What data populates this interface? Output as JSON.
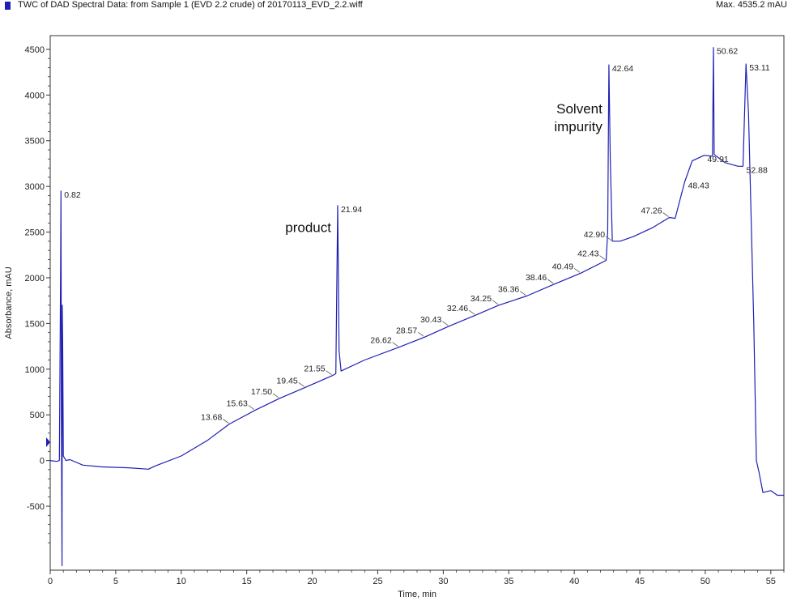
{
  "header": {
    "title": "TWC of DAD Spectral Data: from Sample 1 (EVD 2.2 crude) of 20170113_EVD_2.2.wiff",
    "max_label": "Max. 4535.2 mAU"
  },
  "chart_data": {
    "type": "line",
    "xlabel": "Time, min",
    "ylabel": "Absorbance, mAU",
    "xlim": [
      0,
      56
    ],
    "ylim": [
      -1200,
      4650
    ],
    "xticks": [
      0,
      5,
      10,
      15,
      20,
      25,
      30,
      35,
      40,
      45,
      50,
      55
    ],
    "yticks": [
      -500,
      0,
      500,
      1000,
      1500,
      2000,
      2500,
      3000,
      3500,
      4000,
      4500
    ],
    "grid": false,
    "colors": {
      "trace": "#1f1fb4",
      "axis": "#333333"
    },
    "series": [
      {
        "points": [
          [
            0,
            0
          ],
          [
            0.5,
            -10
          ],
          [
            0.7,
            0
          ],
          [
            0.8,
            2180
          ],
          [
            0.82,
            2950
          ],
          [
            0.85,
            500
          ],
          [
            0.9,
            -1150
          ],
          [
            0.92,
            1700
          ],
          [
            0.95,
            1300
          ],
          [
            1.0,
            50
          ],
          [
            1.2,
            0
          ],
          [
            1.5,
            10
          ],
          [
            2.5,
            -50
          ],
          [
            4,
            -70
          ],
          [
            6,
            -80
          ],
          [
            7.5,
            -95
          ],
          [
            8,
            -60
          ],
          [
            10,
            50
          ],
          [
            12,
            220
          ],
          [
            13.68,
            400
          ],
          [
            15.63,
            550
          ],
          [
            17.5,
            680
          ],
          [
            19.45,
            800
          ],
          [
            21.55,
            930
          ],
          [
            21.8,
            950
          ],
          [
            21.94,
            2790
          ],
          [
            22.05,
            1200
          ],
          [
            22.2,
            980
          ],
          [
            24,
            1100
          ],
          [
            26.62,
            1240
          ],
          [
            28.57,
            1350
          ],
          [
            30.43,
            1470
          ],
          [
            32.46,
            1590
          ],
          [
            34.25,
            1700
          ],
          [
            36.36,
            1800
          ],
          [
            38.46,
            1930
          ],
          [
            40.49,
            2050
          ],
          [
            42.43,
            2190
          ],
          [
            42.55,
            2500
          ],
          [
            42.64,
            4330
          ],
          [
            42.75,
            3300
          ],
          [
            42.9,
            2400
          ],
          [
            43.5,
            2400
          ],
          [
            44.5,
            2450
          ],
          [
            46,
            2550
          ],
          [
            47.26,
            2660
          ],
          [
            47.7,
            2650
          ],
          [
            48.43,
            3050
          ],
          [
            49,
            3280
          ],
          [
            49.91,
            3340
          ],
          [
            50.55,
            3330
          ],
          [
            50.62,
            4520
          ],
          [
            50.68,
            3350
          ],
          [
            51.5,
            3260
          ],
          [
            52.5,
            3220
          ],
          [
            52.88,
            3220
          ],
          [
            53.11,
            4340
          ],
          [
            53.3,
            3800
          ],
          [
            53.7,
            1500
          ],
          [
            53.9,
            0
          ],
          [
            54.1,
            -130
          ],
          [
            54.4,
            -350
          ],
          [
            55,
            -330
          ],
          [
            55.5,
            -380
          ],
          [
            56,
            -380
          ]
        ]
      }
    ],
    "peak_labels": [
      {
        "x": 0.82,
        "y": 2950,
        "text": "0.82"
      },
      {
        "x": 13.68,
        "y": 400,
        "text": "13.68"
      },
      {
        "x": 15.63,
        "y": 550,
        "text": "15.63"
      },
      {
        "x": 17.5,
        "y": 680,
        "text": "17.50"
      },
      {
        "x": 19.45,
        "y": 800,
        "text": "19.45"
      },
      {
        "x": 21.55,
        "y": 930,
        "text": "21.55"
      },
      {
        "x": 21.94,
        "y": 2790,
        "text": "21.94"
      },
      {
        "x": 26.62,
        "y": 1240,
        "text": "26.62"
      },
      {
        "x": 28.57,
        "y": 1350,
        "text": "28.57"
      },
      {
        "x": 30.43,
        "y": 1470,
        "text": "30.43"
      },
      {
        "x": 32.46,
        "y": 1590,
        "text": "32.46"
      },
      {
        "x": 34.25,
        "y": 1700,
        "text": "34.25"
      },
      {
        "x": 36.36,
        "y": 1800,
        "text": "36.36"
      },
      {
        "x": 38.46,
        "y": 1930,
        "text": "38.46"
      },
      {
        "x": 40.49,
        "y": 2050,
        "text": "40.49"
      },
      {
        "x": 42.43,
        "y": 2190,
        "text": "42.43"
      },
      {
        "x": 42.64,
        "y": 4330,
        "text": "42.64"
      },
      {
        "x": 42.9,
        "y": 2400,
        "text": "42.90"
      },
      {
        "x": 47.26,
        "y": 2660,
        "text": "47.26"
      },
      {
        "x": 48.43,
        "y": 3050,
        "text": "48.43"
      },
      {
        "x": 49.91,
        "y": 3340,
        "text": "49.91"
      },
      {
        "x": 50.62,
        "y": 4520,
        "text": "50.62"
      },
      {
        "x": 52.88,
        "y": 3220,
        "text": "52.88"
      },
      {
        "x": 53.11,
        "y": 4340,
        "text": "53.11"
      }
    ],
    "annotations": [
      {
        "lines": [
          "product"
        ],
        "x": 21.94,
        "y": 2500
      },
      {
        "lines": [
          "Solvent",
          "impurity"
        ],
        "x": 42.64,
        "y": 3800
      }
    ]
  }
}
